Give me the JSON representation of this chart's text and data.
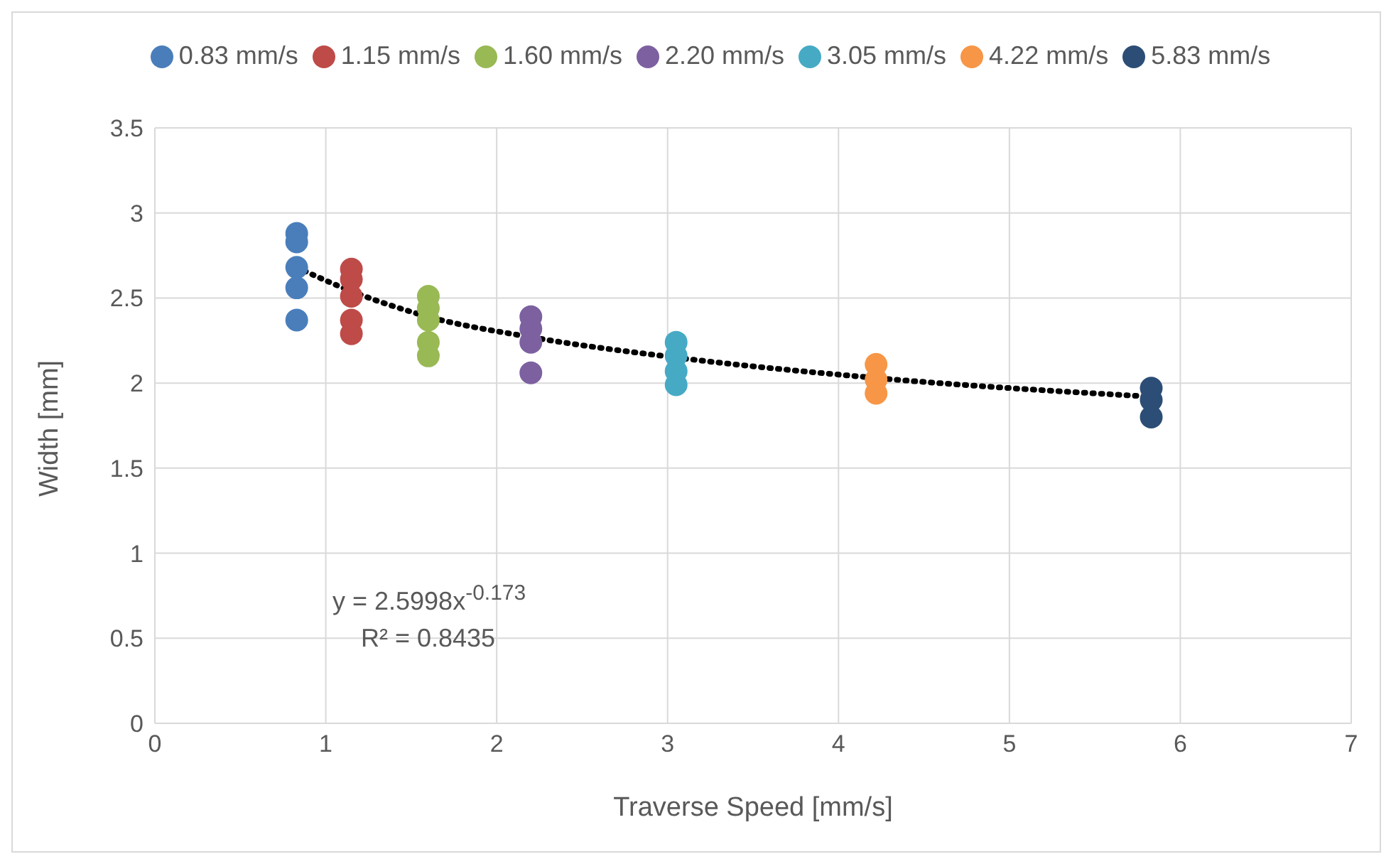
{
  "chart_data": {
    "type": "scatter",
    "xlabel": "Traverse Speed [mm/s]",
    "ylabel": "Width [mm]",
    "xlim": [
      0,
      7
    ],
    "xticks": [
      0,
      1,
      2,
      3,
      4,
      5,
      6,
      7
    ],
    "ylim": [
      0,
      3.5
    ],
    "yticks": [
      0,
      0.5,
      1,
      1.5,
      2,
      2.5,
      3,
      3.5
    ],
    "grid": true,
    "legend": "top",
    "marker": "circle",
    "annotations": [
      "y = 2.5998x$^{-0.173}$",
      "R² = 0.8435"
    ],
    "series": [
      {
        "name": "0.83 mm/s",
        "color": "#4a7ebb",
        "x": [
          0.83,
          0.83,
          0.83,
          0.83,
          0.83
        ],
        "values": [
          2.88,
          2.83,
          2.68,
          2.56,
          2.37
        ]
      },
      {
        "name": "1.15 mm/s",
        "color": "#be4b48",
        "x": [
          1.15,
          1.15,
          1.15,
          1.15,
          1.15
        ],
        "values": [
          2.67,
          2.61,
          2.51,
          2.37,
          2.29
        ]
      },
      {
        "name": "1.60 mm/s",
        "color": "#98b954",
        "x": [
          1.6,
          1.6,
          1.6,
          1.6,
          1.6
        ],
        "values": [
          2.51,
          2.44,
          2.37,
          2.24,
          2.16
        ]
      },
      {
        "name": "2.20 mm/s",
        "color": "#7d60a0",
        "x": [
          2.2,
          2.2,
          2.2,
          2.2
        ],
        "values": [
          2.39,
          2.32,
          2.24,
          2.06
        ]
      },
      {
        "name": "3.05 mm/s",
        "color": "#46aac5",
        "x": [
          3.05,
          3.05,
          3.05,
          3.05
        ],
        "values": [
          2.24,
          2.16,
          2.07,
          1.99
        ]
      },
      {
        "name": "4.22 mm/s",
        "color": "#f79646",
        "x": [
          4.22,
          4.22,
          4.22
        ],
        "values": [
          2.11,
          2.02,
          1.94
        ]
      },
      {
        "name": "5.83 mm/s",
        "color": "#2c4d75",
        "x": [
          5.83,
          5.83,
          5.83
        ],
        "values": [
          1.97,
          1.9,
          1.8
        ]
      },
      {
        "type": "line",
        "color": "#000000",
        "line_style": "dotted",
        "marker": "none",
        "x": [
          0.83,
          1.15,
          1.6,
          2.2,
          3.05,
          4.22,
          5.83
        ],
        "values": [
          2.68,
          2.54,
          2.39,
          2.27,
          2.15,
          2.03,
          1.92
        ]
      }
    ]
  }
}
